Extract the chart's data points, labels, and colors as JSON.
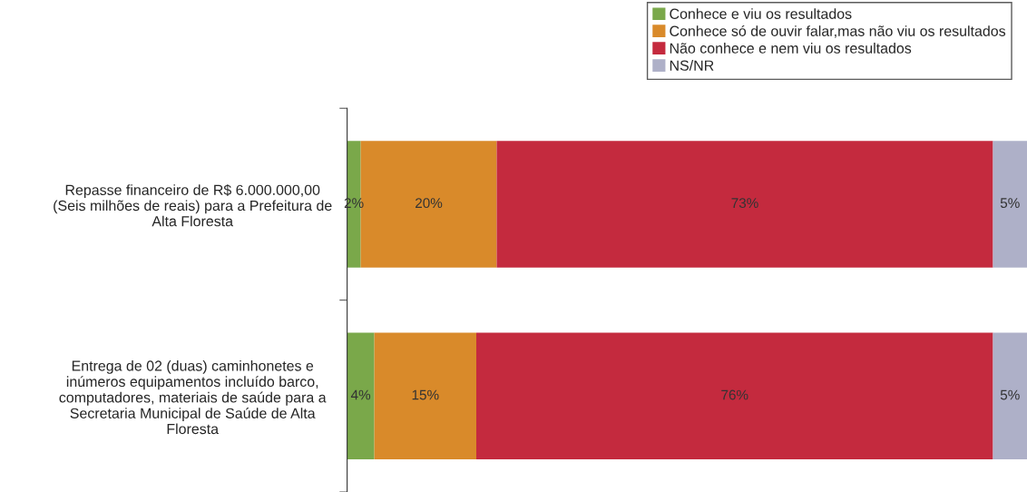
{
  "chart_data": {
    "type": "bar",
    "orientation": "horizontal",
    "stacked": true,
    "legend": "top right",
    "grid": false,
    "categories": [
      "Repasse financeiro de R$ 6.000.000,00\n(Seis milhões de reais) para a Prefeitura de\nAlta Floresta",
      "Entrega de 02 (duas) caminhonetes e\ninúmeros equipamentos incluído barco,\ncomputadores, materiais de saúde para a\nSecretaria Municipal de Saúde de Alta\nFloresta"
    ],
    "series": [
      {
        "name": "Conhece e viu os resultados",
        "color": "#7aa84a",
        "values": [
          2,
          4
        ],
        "value_labels": [
          "2%",
          "4%"
        ]
      },
      {
        "name": "Conhece só de ouvir falar,mas não viu os resultados",
        "color": "#d98a2a",
        "values": [
          20,
          15
        ],
        "value_labels": [
          "20%",
          "15%"
        ]
      },
      {
        "name": "Não conhece e nem viu os resultados",
        "color": "#c42a3e",
        "values": [
          73,
          76
        ],
        "value_labels": [
          "73%",
          "76%"
        ]
      },
      {
        "name": "NS/NR",
        "color": "#aeb0c8",
        "values": [
          5,
          5
        ],
        "value_labels": [
          "5%",
          "5%"
        ]
      }
    ]
  }
}
